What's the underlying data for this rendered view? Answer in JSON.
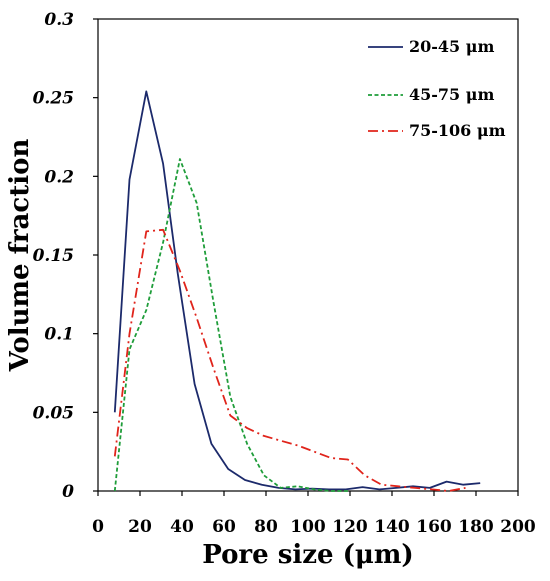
{
  "chart_data": {
    "type": "line",
    "xlabel": "Pore size (μm)",
    "ylabel": "Volume fraction",
    "xlim": [
      0,
      200
    ],
    "ylim": [
      0,
      0.3
    ],
    "x_ticks": [
      0,
      20,
      40,
      60,
      80,
      100,
      120,
      140,
      160,
      180,
      200
    ],
    "y_ticks": [
      0,
      0.05,
      0.1,
      0.15,
      0.2,
      0.25,
      0.3
    ],
    "x_tick_labels": [
      "0",
      "20",
      "40",
      "60",
      "80",
      "100",
      "120",
      "140",
      "160",
      "180",
      "200"
    ],
    "y_tick_labels": [
      "0",
      "0.05",
      "0.1",
      "0.15",
      "0.2",
      "0.25",
      "0.3"
    ],
    "grid": false,
    "legend_position": "top-right",
    "series": [
      {
        "name": "20-45 μm",
        "color": "#1c2a6b",
        "style": "solid",
        "points": [
          [
            8,
            0.05
          ],
          [
            15,
            0.198
          ],
          [
            23,
            0.254
          ],
          [
            31,
            0.208
          ],
          [
            38,
            0.138
          ],
          [
            46,
            0.068
          ],
          [
            54,
            0.03
          ],
          [
            62,
            0.014
          ],
          [
            70,
            0.007
          ],
          [
            78,
            0.004
          ],
          [
            86,
            0.002
          ],
          [
            94,
            0.001
          ],
          [
            102,
            0.0015
          ],
          [
            110,
            0.001
          ],
          [
            118,
            0.001
          ],
          [
            126,
            0.0025
          ],
          [
            134,
            0.001
          ],
          [
            142,
            0.002
          ],
          [
            150,
            0.003
          ],
          [
            158,
            0.002
          ],
          [
            166,
            0.006
          ],
          [
            174,
            0.004
          ],
          [
            182,
            0.005
          ]
        ]
      },
      {
        "name": "45-75 μm",
        "color": "#1f9d3a",
        "style": "dashed",
        "points": [
          [
            8,
            0.0
          ],
          [
            15,
            0.09
          ],
          [
            23,
            0.115
          ],
          [
            31,
            0.158
          ],
          [
            39,
            0.211
          ],
          [
            47,
            0.183
          ],
          [
            55,
            0.12
          ],
          [
            63,
            0.06
          ],
          [
            71,
            0.03
          ],
          [
            79,
            0.01
          ],
          [
            87,
            0.002
          ],
          [
            95,
            0.003
          ],
          [
            103,
            0.001
          ],
          [
            111,
            0.0
          ],
          [
            119,
            0.0
          ]
        ]
      },
      {
        "name": "75-106 μm",
        "color": "#e0241b",
        "style": "dashdot",
        "points": [
          [
            8,
            0.022
          ],
          [
            15,
            0.1
          ],
          [
            23,
            0.165
          ],
          [
            31,
            0.166
          ],
          [
            39,
            0.14
          ],
          [
            47,
            0.11
          ],
          [
            55,
            0.078
          ],
          [
            63,
            0.048
          ],
          [
            71,
            0.04
          ],
          [
            79,
            0.035
          ],
          [
            87,
            0.032
          ],
          [
            95,
            0.029
          ],
          [
            103,
            0.025
          ],
          [
            111,
            0.021
          ],
          [
            119,
            0.02
          ],
          [
            127,
            0.01
          ],
          [
            135,
            0.004
          ],
          [
            143,
            0.003
          ],
          [
            151,
            0.002
          ],
          [
            159,
            0.001
          ],
          [
            167,
            0.0
          ],
          [
            175,
            0.002
          ]
        ]
      }
    ]
  }
}
